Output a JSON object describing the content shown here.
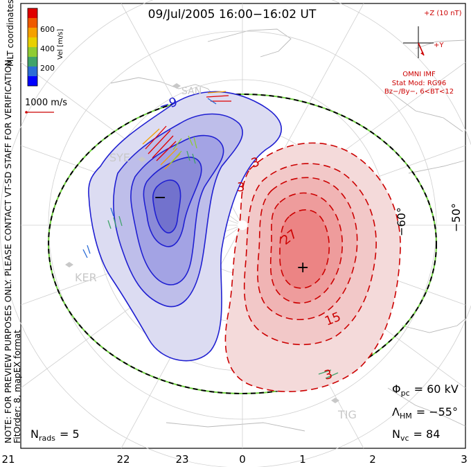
{
  "title": "09/Jul/2005 16:00−16:02 UT",
  "side_notes": {
    "line1": "NOTE: FOR PREVIEW PURPOSES ONLY. PLEASE CONTACT VT-SD STAFF FOR VERIFICATION.",
    "line2": "FitOrder: 8, mapEX format",
    "mlt": "MLT coordinates"
  },
  "colorbar": {
    "label": "Vel [m/s]",
    "ticks": [
      "600",
      "400",
      "200"
    ],
    "colors": [
      "#0000ff",
      "#2b6cd6",
      "#3fa36a",
      "#8fcc33",
      "#e8d000",
      "#f5a000",
      "#ef5a00",
      "#e00000"
    ]
  },
  "velocity_ref": {
    "label": "1000 m/s",
    "color": "#cc0000"
  },
  "imf": {
    "z_label": "+Z (10 nT)",
    "y_label": "+Y",
    "title": "OMNI IMF",
    "model_line1": "Stat Mod: RG96",
    "model_line2": "Bz−/By−, 6<BT<12",
    "color": "#cc0000"
  },
  "stations": [
    "SAN",
    "SYE",
    "KER",
    "TIG"
  ],
  "lat_labels": [
    "−60°",
    "−50°"
  ],
  "contour_labels": {
    "neg_9": "−9",
    "neg_3": "−3",
    "pos_3a": "3",
    "pos_3b": "3",
    "pos_27": "27",
    "pos_15": "15",
    "pos_3c": "3"
  },
  "extrema": {
    "min": "−",
    "max": "+"
  },
  "stats": {
    "phi_label": "Φ",
    "phi_sub": "pc",
    "phi_value": "= 60 kV",
    "lambda_label": "Λ",
    "lambda_sub": "HM",
    "lambda_value": "= −55°",
    "nvc_label": "N",
    "nvc_sub": "vc",
    "nvc_value": "= 84",
    "nrads_label": "N",
    "nrads_sub": "rads",
    "nrads_value": "= 5"
  },
  "mlt_ticks": [
    "21",
    "22",
    "23",
    "0",
    "1",
    "2",
    "3"
  ]
}
